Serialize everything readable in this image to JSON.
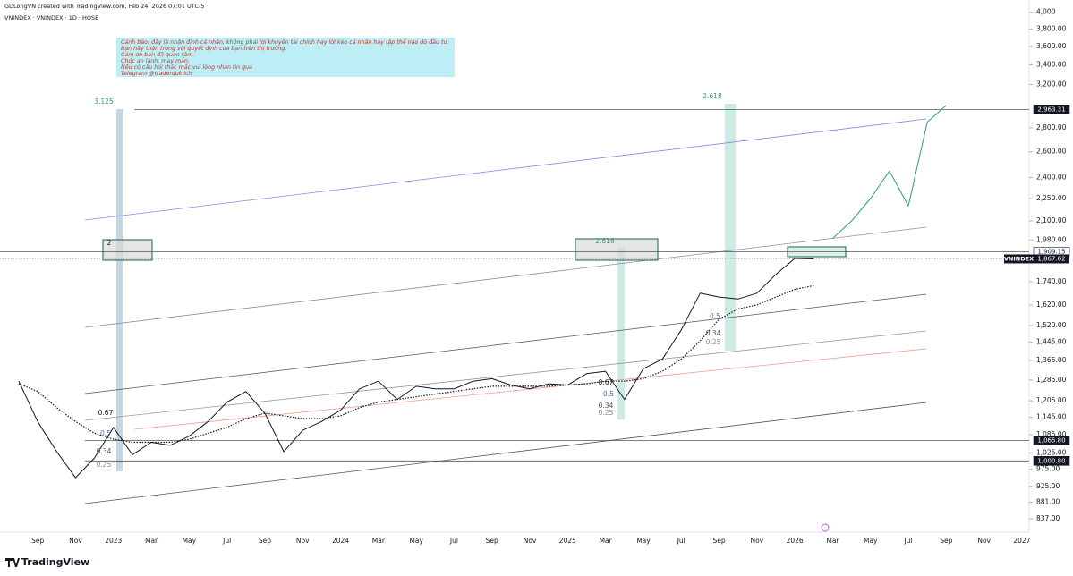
{
  "header": {
    "created": "GDLongVN created with TradingView.com, Feb 24, 2026 07:01 UTC-5",
    "symbol": "VNINDEX · VNINDEX · 1D · HOSE"
  },
  "note": [
    "Cảnh báo: đây là nhận định cá nhân, không phải lời khuyến tài chính hay lời kéo cá nhân hay tập thể nào đó đầu tư.",
    "Bạn hãy thận trọng với quyết định của bạn trên thị trường.",
    "Cảm ơn bạn đã quan tâm.",
    "Chúc an lành, may mắn.",
    "Nếu có câu hỏi thắc mắc vui lòng nhắn tin qua",
    "Telegram @traderduklich"
  ],
  "footer": {
    "brand": "TradingView"
  },
  "chart_data": {
    "type": "line",
    "log_scale": true,
    "grid": false,
    "categories": [
      null,
      "Sep",
      null,
      "Nov",
      null,
      "2023",
      null,
      "Mar",
      null,
      "May",
      null,
      "Jul",
      null,
      "Sep",
      null,
      "Nov",
      null,
      "2024",
      null,
      "Mar",
      null,
      "May",
      null,
      "Jul",
      null,
      "Sep",
      null,
      "Nov",
      null,
      "2025",
      null,
      "Mar",
      null,
      "May",
      null,
      "Jul",
      null,
      "Sep",
      null,
      "Nov",
      null,
      "2026",
      null,
      "Mar",
      null,
      "May",
      null,
      "Jul",
      null,
      "Sep",
      null,
      "Nov",
      null,
      "2027"
    ],
    "series": [
      {
        "color": "#131722",
        "style": "solid",
        "values": [
          1280,
          1130,
          1030,
          950,
          1010,
          1110,
          1020,
          1060,
          1050,
          1080,
          1130,
          1200,
          1240,
          1160,
          1030,
          1100,
          1130,
          1170,
          1250,
          1280,
          1210,
          1260,
          1250,
          1250,
          1280,
          1290,
          1265,
          1250,
          1270,
          1265,
          1310,
          1320,
          1210,
          1330,
          1370,
          1500,
          1680,
          1660,
          1650,
          1680,
          1780,
          1870,
          1867.62,
          null,
          null,
          null,
          null,
          null,
          null,
          null,
          null,
          null,
          null,
          null
        ]
      },
      {
        "color": "#131722",
        "style": "dotted",
        "values": [
          1270,
          1240,
          1180,
          1130,
          1090,
          1070,
          1060,
          1060,
          1060,
          1070,
          1090,
          1110,
          1140,
          1160,
          1150,
          1140,
          1140,
          1150,
          1180,
          1200,
          1210,
          1220,
          1230,
          1240,
          1250,
          1260,
          1260,
          1260,
          1260,
          1265,
          1270,
          1280,
          1280,
          1290,
          1320,
          1370,
          1450,
          1550,
          1600,
          1620,
          1660,
          1700,
          1720,
          null,
          null,
          null,
          null,
          null,
          null,
          null,
          null,
          null,
          null,
          null
        ]
      },
      {
        "color": "#2e9c7c",
        "style": "solid",
        "values": [
          null,
          null,
          null,
          null,
          null,
          null,
          null,
          null,
          null,
          null,
          null,
          null,
          null,
          null,
          null,
          null,
          null,
          null,
          null,
          null,
          null,
          null,
          null,
          null,
          null,
          null,
          null,
          null,
          null,
          null,
          null,
          null,
          null,
          null,
          null,
          null,
          null,
          null,
          null,
          null,
          null,
          null,
          null,
          1990,
          2100,
          2250,
          2450,
          2200,
          2850,
          3000,
          null,
          null,
          null,
          null
        ]
      }
    ],
    "ylim": [
      803,
      4064
    ],
    "yticks": [
      {
        "value": 4000,
        "label": "4,000"
      },
      {
        "value": 3800,
        "label": "3,800.00"
      },
      {
        "value": 3600,
        "label": "3,600.00"
      },
      {
        "value": 3400,
        "label": "3,400.00"
      },
      {
        "value": 3200,
        "label": "3,200.00"
      },
      {
        "value": 2800,
        "label": "2,800.00"
      },
      {
        "value": 2600,
        "label": "2,600.00"
      },
      {
        "value": 2400,
        "label": "2,400.00"
      },
      {
        "value": 2250,
        "label": "2,250.00"
      },
      {
        "value": 2100,
        "label": "2,100.00"
      },
      {
        "value": 1980,
        "label": "1,980.00"
      },
      {
        "value": 1740,
        "label": "1,740.00"
      },
      {
        "value": 1620,
        "label": "1,620.00"
      },
      {
        "value": 1520,
        "label": "1,520.00"
      },
      {
        "value": 1445,
        "label": "1,445.00"
      },
      {
        "value": 1365,
        "label": "1,365.00"
      },
      {
        "value": 1285,
        "label": "1,285.00"
      },
      {
        "value": 1205,
        "label": "1,205.00"
      },
      {
        "value": 1145,
        "label": "1,145.00"
      },
      {
        "value": 1085,
        "label": "1,085.00"
      },
      {
        "value": 1025,
        "label": "1,025.00"
      },
      {
        "value": 975,
        "label": "975.00"
      },
      {
        "value": 925,
        "label": "925.00"
      },
      {
        "value": 881,
        "label": "881.00"
      },
      {
        "value": 837,
        "label": "837.00"
      }
    ],
    "levels": [
      {
        "value": 2963.31,
        "label": "2,963.31"
      },
      {
        "value": 1909.15,
        "label": "1,909.15"
      },
      {
        "value": 1065.8,
        "label": "1,065.80"
      },
      {
        "value": 1000.8,
        "label": "1,000.80"
      }
    ],
    "last_price": {
      "name": "VNINDEX",
      "value": 1867.62,
      "label": "1,867.62"
    },
    "annotations": [
      "3.125",
      "2.618",
      "2.618",
      "2",
      "0.67",
      "0.5",
      "0.34",
      "0.25",
      "0.67",
      "0.5",
      "0.34",
      "0.25",
      "0.5",
      "0.34",
      "0.25"
    ]
  }
}
